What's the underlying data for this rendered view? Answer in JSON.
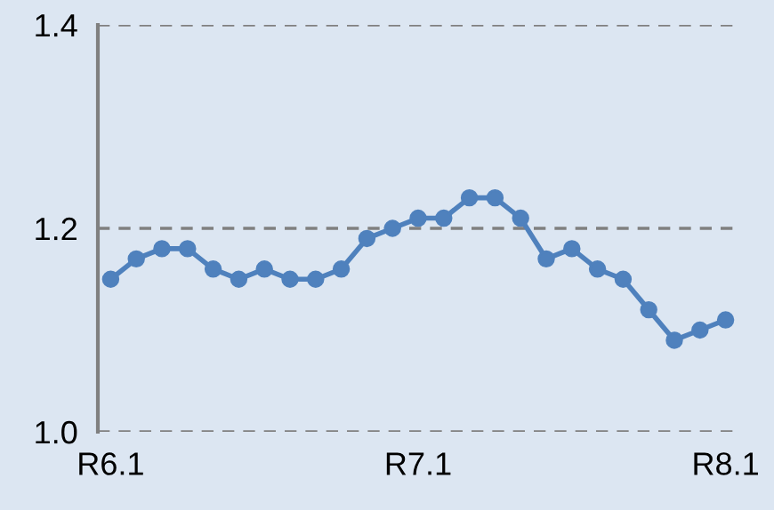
{
  "chart_data": {
    "type": "line",
    "categories": [
      "R6.1",
      null,
      null,
      null,
      null,
      null,
      null,
      null,
      null,
      null,
      null,
      null,
      "R7.1",
      null,
      null,
      null,
      null,
      null,
      null,
      null,
      null,
      null,
      null,
      null,
      "R8.1"
    ],
    "series": [
      {
        "color": "#4f81bd",
        "values": [
          1.15,
          1.17,
          1.18,
          1.18,
          1.16,
          1.15,
          1.16,
          1.15,
          1.15,
          1.16,
          1.19,
          1.2,
          1.21,
          1.21,
          1.23,
          1.23,
          1.21,
          1.17,
          1.18,
          1.16,
          1.15,
          1.12,
          1.09,
          1.1,
          1.11
        ]
      }
    ],
    "ylim": [
      1.0,
      1.4
    ],
    "yticks": [
      {
        "value": 1.0,
        "label": "1.0"
      },
      {
        "value": 1.2,
        "label": "1.2"
      },
      {
        "value": 1.4,
        "label": "1.4"
      }
    ],
    "grid": "y",
    "marker": "circle",
    "line_style": "solid",
    "legend": false
  }
}
